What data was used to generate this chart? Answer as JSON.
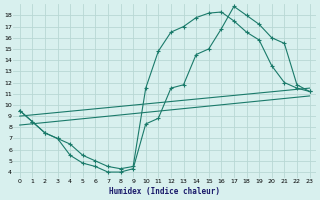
{
  "xlabel": "Humidex (Indice chaleur)",
  "bg_color": "#d8f0ee",
  "grid_color": "#b8d8d4",
  "line_color": "#1a7a6a",
  "xlim": [
    -0.5,
    23.5
  ],
  "ylim": [
    3.5,
    19
  ],
  "xticks": [
    0,
    1,
    2,
    3,
    4,
    5,
    6,
    7,
    8,
    9,
    10,
    11,
    12,
    13,
    14,
    15,
    16,
    17,
    18,
    19,
    20,
    21,
    22,
    23
  ],
  "yticks": [
    4,
    5,
    6,
    7,
    8,
    9,
    10,
    11,
    12,
    13,
    14,
    15,
    16,
    17,
    18
  ],
  "curve_upper_x": [
    0,
    1,
    2,
    3,
    4,
    5,
    6,
    7,
    8,
    9,
    10,
    11,
    12,
    13,
    14,
    15,
    16,
    17,
    18,
    19,
    20,
    21,
    22,
    23
  ],
  "curve_upper_y": [
    9.5,
    8.5,
    7.5,
    7.0,
    6.5,
    5.5,
    5.0,
    4.5,
    4.3,
    4.5,
    11.5,
    14.8,
    16.5,
    17.0,
    17.8,
    18.2,
    18.3,
    17.5,
    16.5,
    15.8,
    13.5,
    12.0,
    11.5,
    11.2
  ],
  "curve_lower_x": [
    0,
    1,
    2,
    3,
    4,
    5,
    6,
    7,
    8,
    9,
    10,
    11,
    12,
    13,
    14,
    15,
    16,
    17,
    18,
    19,
    20,
    21,
    22,
    23
  ],
  "curve_lower_y": [
    9.5,
    8.5,
    7.5,
    7.0,
    5.5,
    4.8,
    4.5,
    4.0,
    4.0,
    4.3,
    8.3,
    8.8,
    11.5,
    11.8,
    14.5,
    15.0,
    16.8,
    18.8,
    18.0,
    17.2,
    16.0,
    15.5,
    11.8,
    11.2
  ],
  "line1_x": [
    0,
    23
  ],
  "line1_y": [
    9.0,
    11.5
  ],
  "line2_x": [
    0,
    23
  ],
  "line2_y": [
    8.2,
    10.8
  ]
}
